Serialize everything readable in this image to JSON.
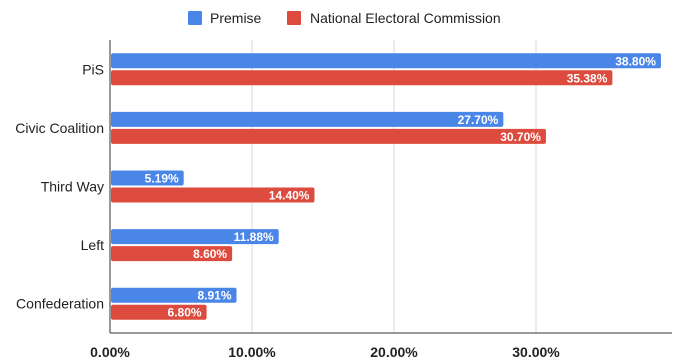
{
  "chart_data": {
    "type": "bar",
    "orientation": "horizontal",
    "categories": [
      "PiS",
      "Civic Coalition",
      "Third Way",
      "Left",
      "Confederation"
    ],
    "series": [
      {
        "name": "Premise",
        "color": "#4a86e8",
        "values": [
          38.8,
          27.7,
          5.19,
          11.88,
          8.91
        ],
        "labels": [
          "38.80%",
          "27.70%",
          "5.19%",
          "11.88%",
          "8.91%"
        ]
      },
      {
        "name": "National Electoral Commission",
        "color": "#dd4b3e",
        "values": [
          35.38,
          30.7,
          14.4,
          8.6,
          6.8
        ],
        "labels": [
          "35.38%",
          "30.70%",
          "14.40%",
          "8.60%",
          "6.80%"
        ]
      }
    ],
    "x_ticks": [
      0,
      10,
      20,
      30
    ],
    "x_tick_labels": [
      "0.00%",
      "10.00%",
      "20.00%",
      "30.00%"
    ],
    "xlim": [
      0,
      40
    ],
    "grid": "vertical",
    "legend_position": "top",
    "title": "",
    "xlabel": "",
    "ylabel": ""
  }
}
